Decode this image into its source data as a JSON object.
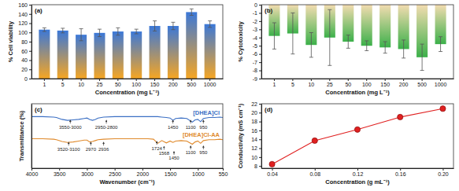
{
  "chart_data": [
    {
      "type": "bar",
      "title": "(a)",
      "x_label": "Concentration (mg L⁻¹)",
      "y_label": "% Cell viability",
      "categories": [
        "1",
        "5",
        "10",
        "25",
        "50",
        "100",
        "150",
        "200",
        "500",
        "1000"
      ],
      "values": [
        106,
        104,
        95,
        99,
        102,
        102,
        114,
        114,
        144,
        118
      ],
      "errors": [
        4,
        5,
        13,
        8,
        8,
        5,
        11,
        8,
        7,
        7
      ],
      "color": "#3b78d8",
      "ylim": [
        0,
        160
      ],
      "yticks": [
        0,
        20,
        40,
        60,
        80,
        100,
        120,
        140,
        160
      ]
    },
    {
      "type": "bar",
      "title": "(b)",
      "x_label": "Concentration (mg L⁻¹)",
      "y_label": "% Cytotoxicity",
      "categories": [
        "1",
        "5",
        "10",
        "25",
        "50",
        "100",
        "150",
        "200",
        "500",
        "1000"
      ],
      "values": [
        -3.8,
        -3.5,
        -4.9,
        -4.0,
        -4.5,
        -5.0,
        -5.2,
        -5.4,
        -6.4,
        -4.8
      ],
      "errors": [
        1.6,
        2.5,
        1.5,
        3.4,
        0.8,
        0.6,
        0.7,
        1.1,
        1.6,
        0.9
      ],
      "color": "#3cb04a",
      "ylim": [
        -9,
        0
      ],
      "yticks": [
        -9,
        -8,
        -7,
        -6,
        -5,
        -4,
        -3,
        -2,
        -1,
        0
      ]
    },
    {
      "type": "line",
      "title": "(c)",
      "x_label": "Wavenumber (cm⁻¹)",
      "y_label": "Transmittance (%)",
      "x": [
        4000,
        3800,
        3600,
        3550,
        3450,
        3350,
        3250,
        3150,
        3050,
        3000,
        2950,
        2900,
        2850,
        2800,
        2700,
        2500,
        2300,
        2100,
        1900,
        1800,
        1724,
        1650,
        1568,
        1500,
        1450,
        1400,
        1300,
        1200,
        1100,
        1050,
        1000,
        950,
        900,
        800,
        700,
        600,
        550
      ],
      "series": [
        {
          "name": "[DHEA]Cl",
          "color": "#3b6fc4",
          "values": [
            86,
            86,
            85.5,
            85,
            83,
            82,
            82.5,
            83,
            84,
            84.5,
            83,
            82,
            83,
            84.5,
            85.5,
            86,
            86,
            86,
            86,
            86,
            86,
            85.5,
            85,
            84.5,
            82,
            84,
            84.5,
            84,
            80,
            82.5,
            83,
            80.5,
            84,
            85,
            85,
            85.5,
            85
          ]
        },
        {
          "name": "[DHEA]Cl-AA",
          "color": "#e08a2c",
          "values": [
            62,
            62,
            61.5,
            61,
            59,
            58,
            58.5,
            59.5,
            60.5,
            60.5,
            58.5,
            59,
            60,
            61,
            61.5,
            62,
            62,
            62,
            62,
            61.5,
            57,
            60,
            57.5,
            59.5,
            58,
            59.5,
            60,
            59.5,
            56,
            58.5,
            59.5,
            57,
            60,
            61,
            61,
            61.5,
            61
          ]
        }
      ],
      "annotations": [
        {
          "text": "3550-3000",
          "x": 3300,
          "y": 73
        },
        {
          "text": "2950-2800",
          "x": 2650,
          "y": 73
        },
        {
          "text": "1450",
          "x": 1450,
          "y": 73
        },
        {
          "text": "1100",
          "x": 1130,
          "y": 73
        },
        {
          "text": "950",
          "x": 900,
          "y": 73
        },
        {
          "text": "3520-3100",
          "x": 3330,
          "y": 49
        },
        {
          "text": "2970",
          "x": 2930,
          "y": 49
        },
        {
          "text": "2936",
          "x": 2700,
          "y": 49
        },
        {
          "text": "1724",
          "x": 1740,
          "y": 50
        },
        {
          "text": "1568",
          "x": 1610,
          "y": 44.5
        },
        {
          "text": "1450",
          "x": 1430,
          "y": 39
        },
        {
          "text": "1100",
          "x": 1130,
          "y": 45
        },
        {
          "text": "950",
          "x": 900,
          "y": 45
        }
      ],
      "xlim": [
        4000,
        550
      ],
      "xticks": [
        4000,
        3500,
        3000,
        2500,
        2000,
        1500,
        1000,
        550
      ],
      "ylim": [
        30,
        100
      ],
      "tick_labels": "x"
    },
    {
      "type": "line",
      "title": "(d)",
      "x_label": "Concentration (g mL⁻¹)",
      "y_label": "Conductivity (mS cm⁻¹)",
      "x": [
        0.04,
        0.08,
        0.12,
        0.16,
        0.2
      ],
      "values": [
        8.4,
        13.7,
        16.2,
        19.0,
        20.9
      ],
      "color": "#e02020",
      "marker": "circle",
      "xlim": [
        0.03,
        0.21
      ],
      "xticks": [
        0.04,
        0.08,
        0.12,
        0.16,
        {
          "value": 0.2,
          "label": "0.20"
        }
      ],
      "ylim": [
        7.5,
        22
      ],
      "yticks": [
        8,
        10,
        12,
        14,
        16,
        18,
        20,
        22
      ]
    }
  ]
}
